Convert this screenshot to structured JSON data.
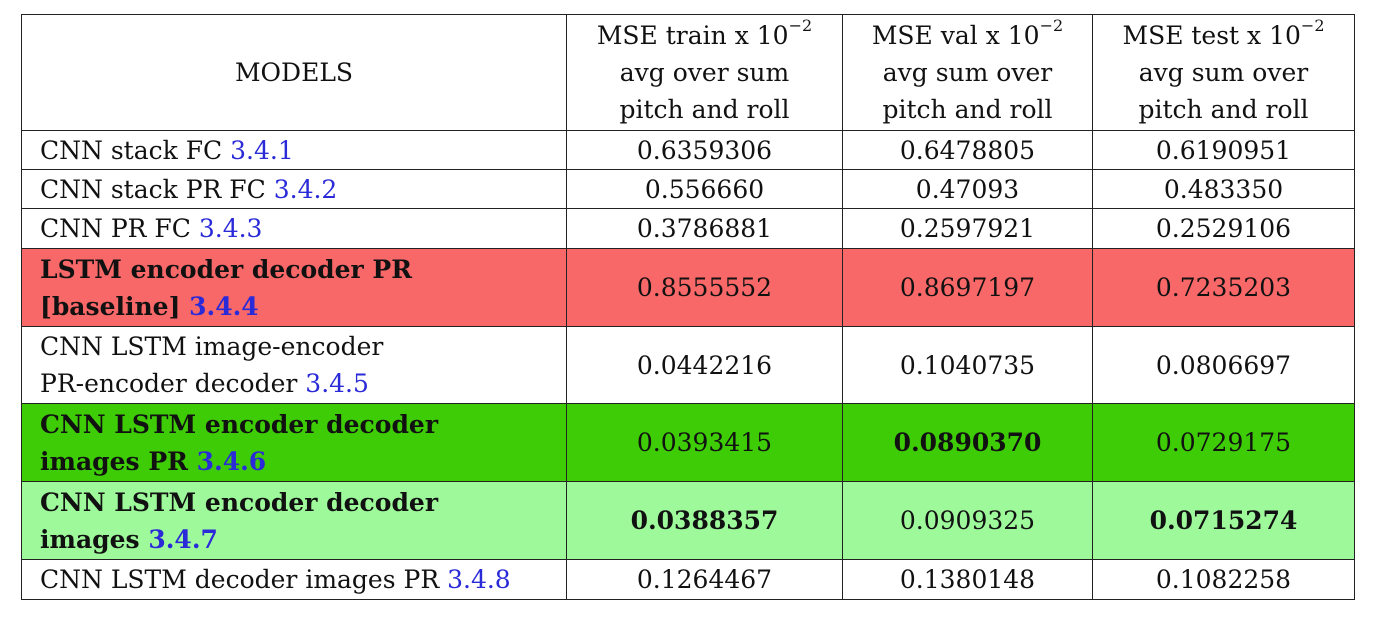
{
  "headers": {
    "models": "MODELS",
    "train": {
      "prefix": "MSE train x 10",
      "exp": "−2",
      "l2": "avg over sum",
      "l3": "pitch and roll"
    },
    "val": {
      "prefix": "MSE val x 10",
      "exp": "−2",
      "l2": "avg sum over",
      "l3": "pitch and roll"
    },
    "test": {
      "prefix": "MSE test x 10",
      "exp": "−2",
      "l2": "avg sum over",
      "l3": "pitch and roll"
    }
  },
  "rows": [
    {
      "l1": "CNN stack FC ",
      "l2": "",
      "ref": "3.4.1",
      "train": "0.6359306",
      "val": "0.6478805",
      "test": "0.6190951"
    },
    {
      "l1": "CNN stack PR FC ",
      "l2": "",
      "ref": "3.4.2",
      "train": "0.556660",
      "val": "0.47093",
      "test": "0.483350"
    },
    {
      "l1": "CNN PR FC ",
      "l2": "",
      "ref": "3.4.3",
      "train": "0.3786881",
      "val": "0.2597921",
      "test": "0.2529106"
    },
    {
      "l1": "LSTM encoder decoder PR",
      "l2": "[baseline] ",
      "ref": "3.4.4",
      "train": "0.8555552",
      "val": "0.8697197",
      "test": "0.7235203"
    },
    {
      "l1": "CNN LSTM image-encoder",
      "l2": "PR-encoder decoder ",
      "ref": "3.4.5",
      "train": "0.0442216",
      "val": "0.1040735",
      "test": "0.0806697"
    },
    {
      "l1": "CNN LSTM encoder decoder",
      "l2": "images PR ",
      "ref": "3.4.6",
      "train": "0.0393415",
      "val": "0.0890370",
      "test": "0.0729175"
    },
    {
      "l1": "CNN LSTM encoder decoder",
      "l2": "images ",
      "ref": "3.4.7",
      "train": "0.0388357",
      "val": "0.0909325",
      "test": "0.0715274"
    },
    {
      "l1": "CNN LSTM decoder images PR ",
      "l2": "",
      "ref": "3.4.8",
      "train": "0.1264467",
      "val": "0.1380148",
      "test": "0.1082258"
    }
  ],
  "colors": {
    "baseline_row": "#f96868",
    "best_val_row": "#3ecc06",
    "best_train_test_row": "#9df99a",
    "link": "#2a2ad8"
  }
}
